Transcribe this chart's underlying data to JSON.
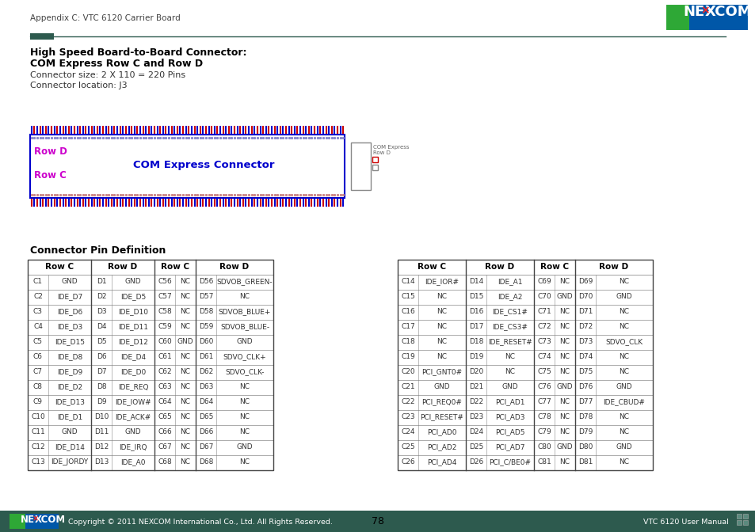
{
  "title_header": "Appendix C: VTC 6120 Carrier Board",
  "page_number": "78",
  "footer_text": "Copyright © 2011 NEXCOM International Co., Ltd. All Rights Reserved.",
  "footer_right": "VTC 6120 User Manual",
  "section_title1": "High Speed Board-to-Board Connector:",
  "section_title2": "COM Express Row C and Row D",
  "connector_size": "Connector size: 2 X 110 = 220 Pins",
  "connector_location": "Connector location: J3",
  "table_section_title": "Connector Pin Definition",
  "left_table_headers": [
    "Row C",
    "Row D",
    "Row C",
    "Row D"
  ],
  "right_table_headers": [
    "Row C",
    "Row D",
    "Row C",
    "Row D"
  ],
  "left_table_data": [
    [
      "C1",
      "GND",
      "D1",
      "GND",
      "C56",
      "NC",
      "D56",
      "SDVOB_GREEN-"
    ],
    [
      "C2",
      "IDE_D7",
      "D2",
      "IDE_D5",
      "C57",
      "NC",
      "D57",
      "NC"
    ],
    [
      "C3",
      "IDE_D6",
      "D3",
      "IDE_D10",
      "C58",
      "NC",
      "D58",
      "SDVOB_BLUE+"
    ],
    [
      "C4",
      "IDE_D3",
      "D4",
      "IDE_D11",
      "C59",
      "NC",
      "D59",
      "SDVOB_BLUE-"
    ],
    [
      "C5",
      "IDE_D15",
      "D5",
      "IDE_D12",
      "C60",
      "GND",
      "D60",
      "GND"
    ],
    [
      "C6",
      "IDE_D8",
      "D6",
      "IDE_D4",
      "C61",
      "NC",
      "D61",
      "SDVO_CLK+"
    ],
    [
      "C7",
      "IDE_D9",
      "D7",
      "IDE_D0",
      "C62",
      "NC",
      "D62",
      "SDVO_CLK-"
    ],
    [
      "C8",
      "IDE_D2",
      "D8",
      "IDE_REQ",
      "C63",
      "NC",
      "D63",
      "NC"
    ],
    [
      "C9",
      "IDE_D13",
      "D9",
      "IDE_IOW#",
      "C64",
      "NC",
      "D64",
      "NC"
    ],
    [
      "C10",
      "IDE_D1",
      "D10",
      "IDE_ACK#",
      "C65",
      "NC",
      "D65",
      "NC"
    ],
    [
      "C11",
      "GND",
      "D11",
      "GND",
      "C66",
      "NC",
      "D66",
      "NC"
    ],
    [
      "C12",
      "IDE_D14",
      "D12",
      "IDE_IRQ",
      "C67",
      "NC",
      "D67",
      "GND"
    ],
    [
      "C13",
      "IDE_JORDY",
      "D13",
      "IDE_A0",
      "C68",
      "NC",
      "D68",
      "NC"
    ]
  ],
  "right_table_data": [
    [
      "C14",
      "IDE_IOR#",
      "D14",
      "IDE_A1",
      "C69",
      "NC",
      "D69",
      "NC"
    ],
    [
      "C15",
      "NC",
      "D15",
      "IDE_A2",
      "C70",
      "GND",
      "D70",
      "GND"
    ],
    [
      "C16",
      "NC",
      "D16",
      "IDE_CS1#",
      "C71",
      "NC",
      "D71",
      "NC"
    ],
    [
      "C17",
      "NC",
      "D17",
      "IDE_CS3#",
      "C72",
      "NC",
      "D72",
      "NC"
    ],
    [
      "C18",
      "NC",
      "D18",
      "IDE_RESET#",
      "C73",
      "NC",
      "D73",
      "SDVO_CLK"
    ],
    [
      "C19",
      "NC",
      "D19",
      "NC",
      "C74",
      "NC",
      "D74",
      "NC"
    ],
    [
      "C20",
      "PCI_GNT0#",
      "D20",
      "NC",
      "C75",
      "NC",
      "D75",
      "NC"
    ],
    [
      "C21",
      "GND",
      "D21",
      "GND",
      "C76",
      "GND",
      "D76",
      "GND"
    ],
    [
      "C22",
      "PCI_REQ0#",
      "D22",
      "PCI_AD1",
      "C77",
      "NC",
      "D77",
      "IDE_CBUD#"
    ],
    [
      "C23",
      "PCI_RESET#",
      "D23",
      "PCI_AD3",
      "C78",
      "NC",
      "D78",
      "NC"
    ],
    [
      "C24",
      "PCI_AD0",
      "D24",
      "PCI_AD5",
      "C79",
      "NC",
      "D79",
      "NC"
    ],
    [
      "C25",
      "PCI_AD2",
      "D25",
      "PCI_AD7",
      "C80",
      "GND",
      "D80",
      "GND"
    ],
    [
      "C26",
      "PCI_AD4",
      "D26",
      "PCI_C/BE0#",
      "C81",
      "NC",
      "D81",
      "NC"
    ]
  ],
  "row_d_label": "Row D",
  "row_c_label": "Row C",
  "com_express_label": "COM Express Connector",
  "header_bg": "#2d5a4e",
  "nexcom_green": "#2ea836",
  "nexcom_blue": "#0057a8",
  "row_d_color": "#cc00cc",
  "row_c_color": "#cc00cc",
  "com_express_color": "#0000cc"
}
